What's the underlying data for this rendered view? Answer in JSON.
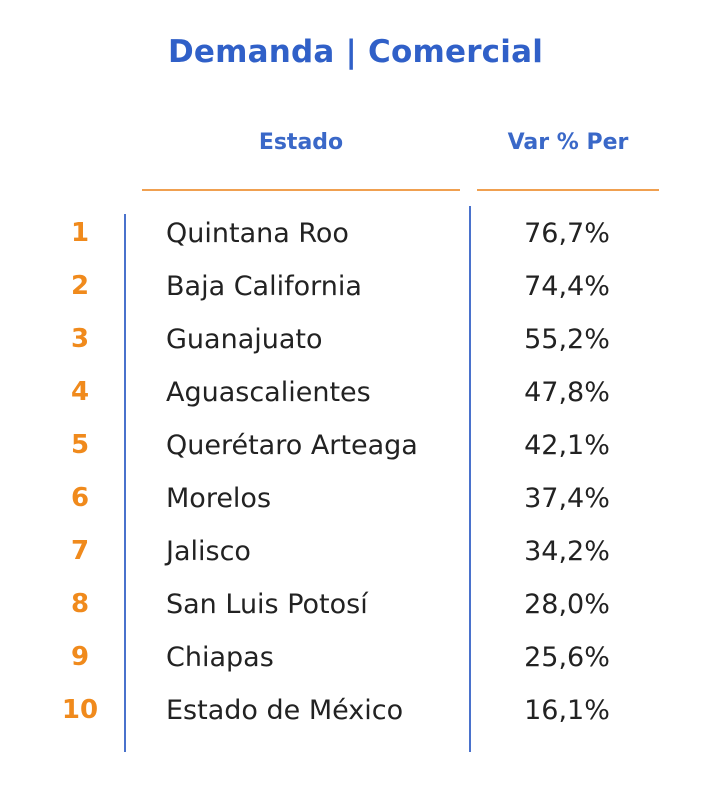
{
  "title": "Demanda | Comercial",
  "colors": {
    "title": "#3060c8",
    "header": "#3a68c8",
    "rank": "#f08a1c",
    "underline": "#f0a050",
    "divider": "#4a72cc",
    "text": "#222222"
  },
  "headers": {
    "estado": "Estado",
    "var": "Var % Per"
  },
  "chart_data": {
    "type": "table",
    "title": "Demanda | Comercial",
    "columns": [
      "",
      "Estado",
      "Var % Per"
    ],
    "rows": [
      {
        "rank": "1",
        "estado": "Quintana Roo",
        "var": "76,7%",
        "value": 76.7
      },
      {
        "rank": "2",
        "estado": "Baja California",
        "var": "74,4%",
        "value": 74.4
      },
      {
        "rank": "3",
        "estado": "Guanajuato",
        "var": "55,2%",
        "value": 55.2
      },
      {
        "rank": "4",
        "estado": "Aguascalientes",
        "var": "47,8%",
        "value": 47.8
      },
      {
        "rank": "5",
        "estado": "Querétaro Arteaga",
        "var": "42,1%",
        "value": 42.1
      },
      {
        "rank": "6",
        "estado": "Morelos",
        "var": "37,4%",
        "value": 37.4
      },
      {
        "rank": "7",
        "estado": "Jalisco",
        "var": "34,2%",
        "value": 34.2
      },
      {
        "rank": "8",
        "estado": "San Luis Potosí",
        "var": "28,0%",
        "value": 28.0
      },
      {
        "rank": "9",
        "estado": "Chiapas",
        "var": "25,6%",
        "value": 25.6
      },
      {
        "rank": "10",
        "estado": "Estado de México",
        "var": "16,1%",
        "value": 16.1
      }
    ]
  }
}
